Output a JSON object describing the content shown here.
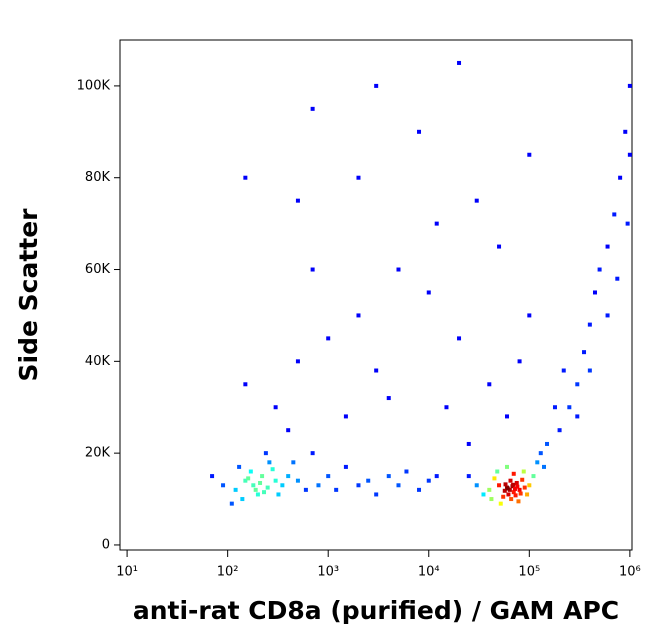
{
  "chart_data": {
    "type": "scatter",
    "x_label": "anti-rat CD8a (purified) / GAM APC",
    "y_label": "Side Scatter",
    "xscale": "log",
    "xlim": [
      8.5,
      1050000
    ],
    "ylim": [
      -1100,
      110000
    ],
    "xticks": [
      {
        "value": 10,
        "label": "10¹"
      },
      {
        "value": 100,
        "label": "10²"
      },
      {
        "value": 1000,
        "label": "10³"
      },
      {
        "value": 10000,
        "label": "10⁴"
      },
      {
        "value": 100000,
        "label": "10⁵"
      },
      {
        "value": 1000000,
        "label": "10⁶"
      }
    ],
    "yticks": [
      0,
      {
        "value": 20000,
        "label": "20K"
      },
      {
        "value": 40000,
        "label": "40K"
      },
      {
        "value": 60000,
        "label": "60K"
      },
      {
        "value": 80000,
        "label": "80K"
      },
      {
        "value": 100000,
        "label": "100K"
      }
    ],
    "x": [
      120,
      150,
      180,
      200,
      220,
      250,
      170,
      300,
      140,
      260,
      190,
      210,
      230,
      160,
      280,
      350,
      400,
      130,
      110,
      240,
      320,
      90,
      70,
      500,
      600,
      450,
      800,
      1000,
      1200,
      700,
      1500,
      2000,
      2500,
      3000,
      4000,
      5000,
      6000,
      8000,
      10000,
      12000,
      40000,
      50000,
      60000,
      70000,
      80000,
      65000,
      55000,
      75000,
      90000,
      45000,
      62000,
      68000,
      72000,
      58000,
      85000,
      95000,
      100000,
      110000,
      120000,
      35000,
      30000,
      25000,
      52000,
      78000,
      66000,
      88000,
      60000,
      130000,
      150000,
      140000,
      48000,
      42000,
      70000,
      64000,
      76000,
      57000,
      82000,
      69000,
      61000,
      73000,
      200000,
      250000,
      300000,
      350000,
      400000,
      450000,
      500000,
      600000,
      700000,
      800000,
      900000,
      300000,
      400000,
      600000,
      750000,
      950000,
      1000000,
      1000000,
      180000,
      220000,
      300,
      500,
      1000,
      2000,
      3000,
      5000,
      10000,
      20000,
      700,
      150,
      2000,
      8000,
      30000,
      50000,
      100000,
      400,
      1500,
      4000,
      15000,
      40000,
      60000,
      100000,
      700,
      20000,
      3000,
      150,
      500,
      12000,
      80000,
      25000
    ],
    "values": [
      12000,
      14000,
      13000,
      11000,
      15000,
      12500,
      16000,
      14000,
      10000,
      18000,
      12000,
      13500,
      11500,
      14500,
      16500,
      13000,
      15000,
      17000,
      9000,
      20000,
      11000,
      13000,
      15000,
      14000,
      12000,
      18000,
      13000,
      15000,
      12000,
      20000,
      17000,
      13000,
      14000,
      11000,
      15000,
      13000,
      16000,
      12000,
      14000,
      15000,
      12000,
      13000,
      12500,
      11500,
      12000,
      14000,
      10500,
      13500,
      12500,
      14500,
      11000,
      12800,
      12200,
      13200,
      14200,
      11000,
      13000,
      15000,
      18000,
      11000,
      13000,
      15000,
      9000,
      9500,
      10000,
      16000,
      17000,
      20000,
      22000,
      17000,
      16000,
      10000,
      15500,
      12000,
      12700,
      11800,
      11200,
      13100,
      12300,
      10800,
      25000,
      30000,
      35000,
      42000,
      48000,
      55000,
      60000,
      65000,
      72000,
      80000,
      90000,
      28000,
      38000,
      50000,
      58000,
      70000,
      100000,
      85000,
      30000,
      38000,
      30000,
      40000,
      45000,
      50000,
      38000,
      60000,
      55000,
      45000,
      60000,
      35000,
      80000,
      90000,
      75000,
      65000,
      50000,
      25000,
      28000,
      32000,
      30000,
      35000,
      28000,
      85000,
      95000,
      105000,
      100000,
      80000,
      75000,
      70000,
      40000,
      22000
    ]
  }
}
